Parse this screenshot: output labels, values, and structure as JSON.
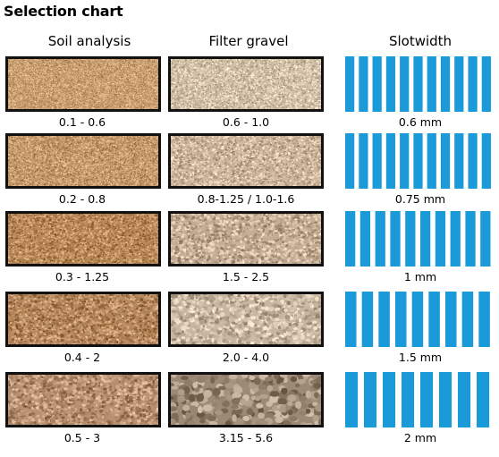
{
  "title": "Selection chart",
  "headers": {
    "soil": "Soil analysis",
    "gravel": "Filter gravel",
    "slot": "Slotwidth"
  },
  "colors": {
    "slot_blue": "#1a9ad9",
    "frame": "#111111"
  },
  "rows": [
    {
      "soil_range": "0.1 - 0.6",
      "gravel_range": "0.6 - 1.0",
      "slot_width": "0.6 mm",
      "soil_base": "#c99f72",
      "gravel_base": "#d2c0a8",
      "soil_grain": 0.7,
      "gravel_grain": 1.0,
      "slot_count": 11
    },
    {
      "soil_range": "0.2 - 0.8",
      "gravel_range": "0.8-1.25 / 1.0-1.6",
      "slot_width": "0.75 mm",
      "soil_base": "#c49a6c",
      "gravel_base": "#cbb69c",
      "soil_grain": 0.9,
      "gravel_grain": 1.3,
      "slot_count": 11
    },
    {
      "soil_range": "0.3 - 1.25",
      "gravel_range": "1.5 - 2.5",
      "slot_width": "1 mm",
      "soil_base": "#b98859",
      "gravel_base": "#c3ad95",
      "soil_grain": 1.2,
      "gravel_grain": 1.8,
      "slot_count": 10
    },
    {
      "soil_range": "0.4 - 2",
      "gravel_range": "2.0 - 4.0",
      "slot_width": "1.5 mm",
      "soil_base": "#b5875c",
      "gravel_base": "#c9b6a1",
      "soil_grain": 1.5,
      "gravel_grain": 2.4,
      "slot_count": 9
    },
    {
      "soil_range": "0.5 - 3",
      "gravel_range": "3.15 - 5.6",
      "slot_width": "2 mm",
      "soil_base": "#b69070",
      "gravel_base": "#9c8a76",
      "soil_grain": 1.9,
      "gravel_grain": 4.2,
      "slot_count": 8
    }
  ]
}
